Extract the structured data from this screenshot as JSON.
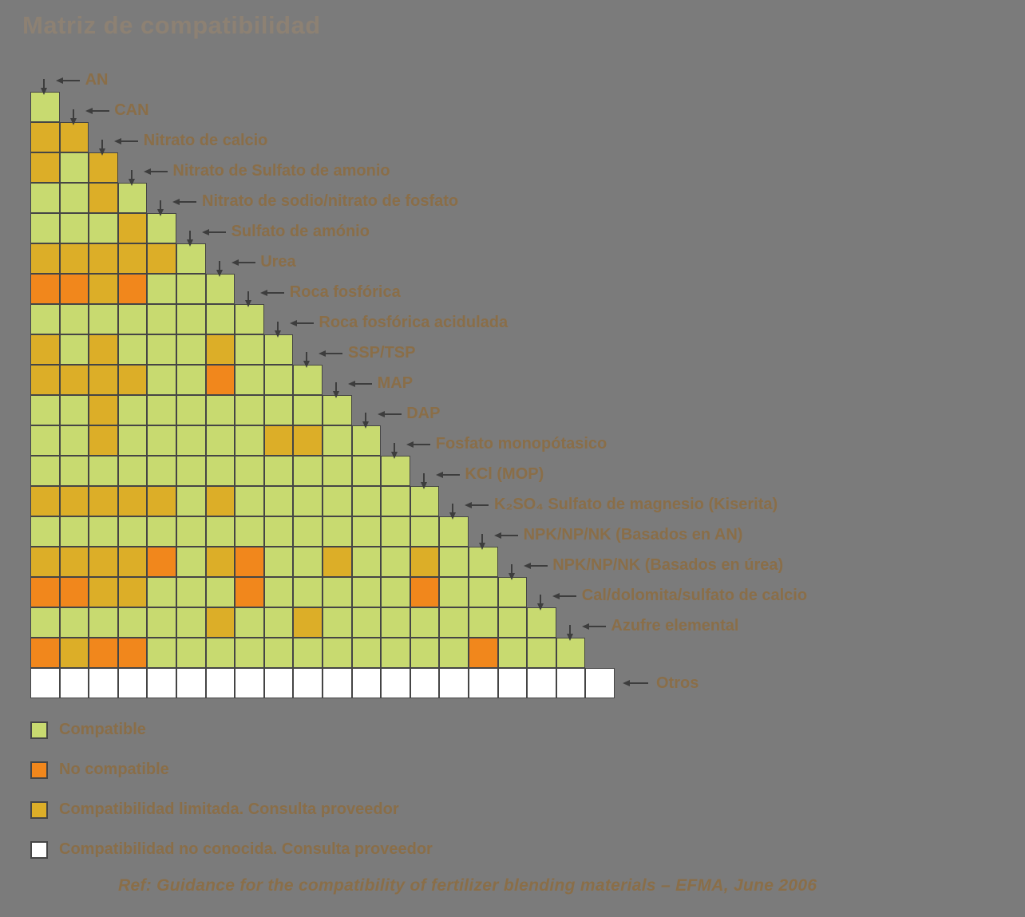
{
  "title": "Matriz de compatibilidad",
  "footer": "Ref: Guidance for the compatibility of fertilizer blending materials – EFMA, June 2006",
  "colors": {
    "background": "#7b7b7b",
    "compatible": "#c8da70",
    "not_compatible": "#f1871c",
    "limited": "#dcae28",
    "unknown": "#ffffff",
    "grid_border": "#454545",
    "label_text": "#8a6e48",
    "title_text": "#8d8173",
    "arrow": "#3d3d3d"
  },
  "legend_items": [
    {
      "code": "G",
      "label": "Compatible"
    },
    {
      "code": "N",
      "label": "No compatible"
    },
    {
      "code": "L",
      "label": "Compatibilidad limitada. Consulta proveedor"
    },
    {
      "code": "U",
      "label": "Compatibilidad no conocida. Consulta proveedor"
    }
  ],
  "chart_data": {
    "type": "heatmap",
    "title": "Matriz de compatibilidad",
    "layout": "lower-triangular matrix, row i has i cells, labels with arrows at diagonal",
    "legend": {
      "G": "Compatible",
      "N": "No compatible",
      "L": "Compatibilidad limitada. Consulta proveedor",
      "U": "Compatibilidad no conocida. Consulta proveedor"
    },
    "materials": [
      "AN",
      "CAN",
      "Nitrato de calcio",
      "Nitrato de Sulfato de amonio",
      "Nitrato de sodio/nitrato de fosfato",
      "Sulfato de amónio",
      "Urea",
      "Roca fosfórica",
      "Roca fosfórica acidulada",
      "SSP/TSP",
      "MAP",
      "DAP",
      "Fosfato monopótasico",
      "KCl (MOP)",
      "K₂SO₄ Sulfato de magnesio (Kiserita)",
      "NPK/NP/NK (Basados en AN)",
      "NPK/NP/NK (Basados en úrea)",
      "Cal/dolomita/sulfato de calcio",
      "Azufre elemental",
      "Otros"
    ],
    "matrix": [
      [
        "G"
      ],
      [
        "L",
        "L"
      ],
      [
        "L",
        "G",
        "L"
      ],
      [
        "G",
        "G",
        "L",
        "G"
      ],
      [
        "G",
        "G",
        "G",
        "L",
        "G"
      ],
      [
        "L",
        "L",
        "L",
        "L",
        "L",
        "G"
      ],
      [
        "N",
        "N",
        "L",
        "N",
        "G",
        "G",
        "G"
      ],
      [
        "G",
        "G",
        "G",
        "G",
        "G",
        "G",
        "G",
        "G"
      ],
      [
        "L",
        "G",
        "L",
        "G",
        "G",
        "G",
        "L",
        "G",
        "G"
      ],
      [
        "L",
        "L",
        "L",
        "L",
        "G",
        "G",
        "N",
        "G",
        "G",
        "G"
      ],
      [
        "G",
        "G",
        "L",
        "G",
        "G",
        "G",
        "G",
        "G",
        "G",
        "G",
        "G"
      ],
      [
        "G",
        "G",
        "L",
        "G",
        "G",
        "G",
        "G",
        "G",
        "L",
        "L",
        "G",
        "G"
      ],
      [
        "G",
        "G",
        "G",
        "G",
        "G",
        "G",
        "G",
        "G",
        "G",
        "G",
        "G",
        "G",
        "G"
      ],
      [
        "L",
        "L",
        "L",
        "L",
        "L",
        "G",
        "L",
        "G",
        "G",
        "G",
        "G",
        "G",
        "G",
        "G"
      ],
      [
        "G",
        "G",
        "G",
        "G",
        "G",
        "G",
        "G",
        "G",
        "G",
        "G",
        "G",
        "G",
        "G",
        "G",
        "G"
      ],
      [
        "L",
        "L",
        "L",
        "L",
        "N",
        "G",
        "L",
        "N",
        "G",
        "G",
        "L",
        "G",
        "G",
        "L",
        "G",
        "G"
      ],
      [
        "N",
        "N",
        "L",
        "L",
        "G",
        "G",
        "G",
        "N",
        "G",
        "G",
        "G",
        "G",
        "G",
        "N",
        "G",
        "G",
        "G"
      ],
      [
        "G",
        "G",
        "G",
        "G",
        "G",
        "G",
        "L",
        "G",
        "G",
        "L",
        "G",
        "G",
        "G",
        "G",
        "G",
        "G",
        "G",
        "G"
      ],
      [
        "N",
        "L",
        "N",
        "N",
        "G",
        "G",
        "G",
        "G",
        "G",
        "G",
        "G",
        "G",
        "G",
        "G",
        "G",
        "N",
        "G",
        "G",
        "G"
      ],
      [
        "U",
        "U",
        "U",
        "U",
        "U",
        "U",
        "U",
        "U",
        "U",
        "U",
        "U",
        "U",
        "U",
        "U",
        "U",
        "U",
        "U",
        "U",
        "U",
        "U"
      ]
    ]
  }
}
